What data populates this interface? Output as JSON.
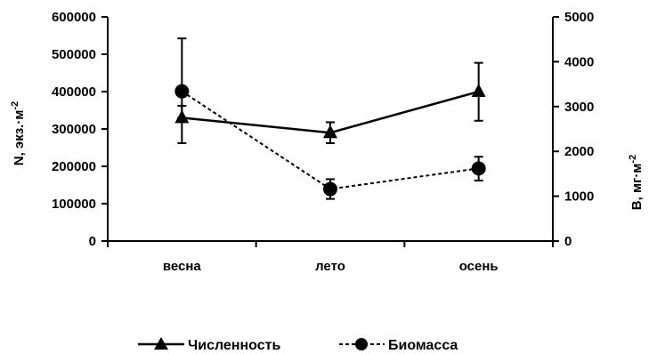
{
  "chart_data": {
    "type": "line",
    "categories": [
      "весна",
      "лето",
      "осень"
    ],
    "y_left": {
      "label": "N, экз.·м",
      "label_sup": "-2",
      "ylim": [
        0,
        600000
      ],
      "ticks": [
        "0",
        "100000",
        "200000",
        "300000",
        "400000",
        "500000",
        "600000"
      ]
    },
    "y_right": {
      "label": "B, мг·м",
      "label_sup": "-2",
      "ylim": [
        0,
        5000
      ],
      "ticks": [
        "0",
        "1000",
        "2000",
        "3000",
        "4000",
        "5000"
      ]
    },
    "series": [
      {
        "name": "Численность",
        "axis": "left",
        "marker": "triangle",
        "line": "solid",
        "values": [
          330000,
          290000,
          400000
        ],
        "error_low": [
          262000,
          262000,
          322000
        ],
        "error_high": [
          362000,
          318000,
          477000
        ]
      },
      {
        "name": "Биомасса",
        "axis": "right",
        "marker": "circle",
        "line": "dashed",
        "values": [
          3340,
          1160,
          1620
        ],
        "error_low": [
          2750,
          940,
          1350
        ],
        "error_high": [
          4520,
          1380,
          1880
        ]
      }
    ],
    "legend_position": "bottom"
  }
}
